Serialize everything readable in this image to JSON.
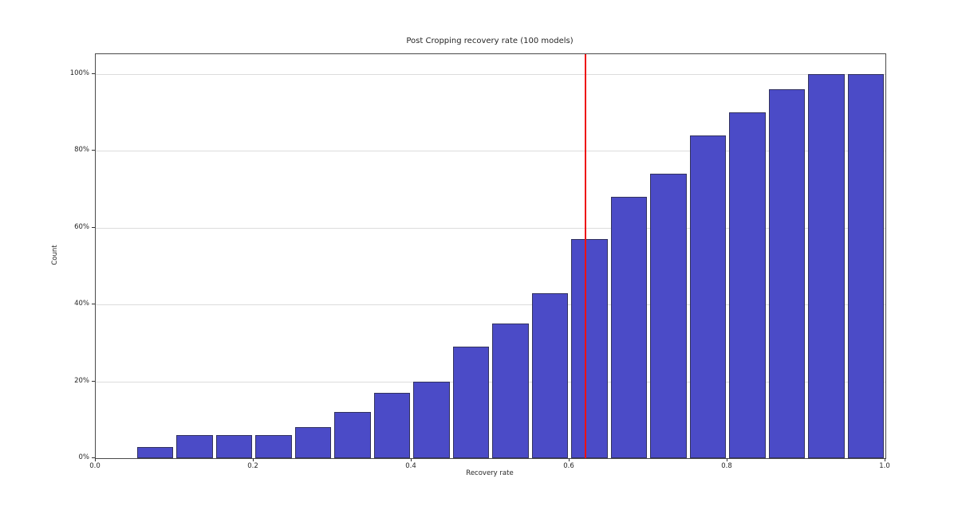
{
  "chart_data": {
    "type": "bar",
    "title": "Post Cropping recovery rate (100 models)",
    "xlabel": "Recovery rate",
    "ylabel": "Count",
    "x_tick_values": [
      0.0,
      0.2,
      0.4,
      0.6,
      0.8,
      1.0
    ],
    "x_tick_labels": [
      "0.0",
      "0.2",
      "0.4",
      "0.6",
      "0.8",
      "1.0"
    ],
    "y_tick_values": [
      0,
      20,
      40,
      60,
      80,
      100
    ],
    "y_tick_labels": [
      "0%",
      "20%",
      "40%",
      "60%",
      "80%",
      "100%"
    ],
    "xlim": [
      0.0,
      1.0
    ],
    "ylim": [
      0,
      105.2
    ],
    "grid": "horizontal-only",
    "legend": null,
    "bins": {
      "start": 0.05,
      "end": 1.0,
      "count": 19,
      "bar_rwidth": 0.92
    },
    "values_percent": [
      3,
      6,
      6,
      6,
      8,
      12,
      17,
      20,
      29,
      35,
      43,
      57,
      68,
      74,
      84,
      90,
      96,
      100,
      100
    ],
    "vline": {
      "x": 0.62,
      "color": "#ee1111"
    },
    "colors": {
      "bar_fill": "#4b4bc7",
      "bar_edge": "#32325e",
      "grid": "#dcdcdc",
      "spine": "#4a4a4a",
      "tick": "#333333",
      "text": "#262626",
      "background": "#ffffff"
    }
  }
}
